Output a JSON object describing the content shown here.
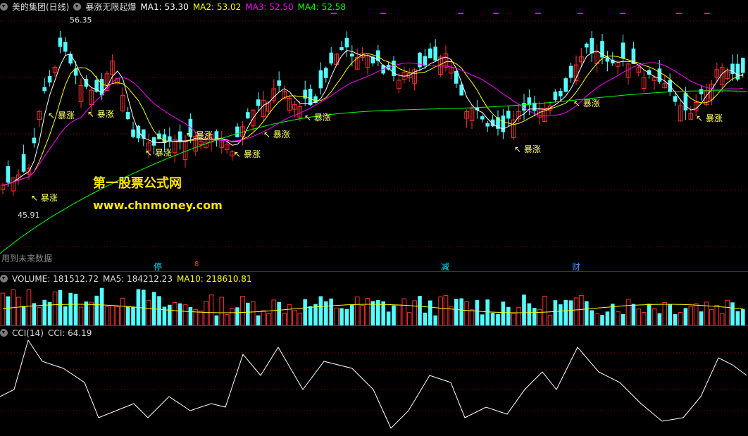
{
  "main": {
    "stock_name": "美的集团(日线)",
    "indicator_name": "暴涨无限起爆",
    "ma": [
      {
        "label": "MA1: 53.30",
        "color": "#ffffff"
      },
      {
        "label": "MA2: 53.02",
        "color": "#ffff00"
      },
      {
        "label": "MA3: 52.50",
        "color": "#ff00ff"
      },
      {
        "label": "MA4: 52.58",
        "color": "#00ff00"
      }
    ],
    "high_label": "56.35",
    "low_label": "45.91",
    "signal_text": "暴涨",
    "watermark_cn": "第一股票公式网",
    "watermark_url": "www.chnmoney.com",
    "future_data_note": "用到未来数据",
    "event_tags": [
      {
        "text": "停",
        "color": "#00e5ff"
      },
      {
        "text": "8",
        "color": "#ff3030"
      },
      {
        "text": "减",
        "color": "#00e5ff"
      },
      {
        "text": "财",
        "color": "#4f8dff"
      }
    ]
  },
  "volume": {
    "label": "VOLUME: 181512.72",
    "ma5": "MA5: 184212.23",
    "ma10": "MA10: 218610.81"
  },
  "cci": {
    "name": "CCI(14)",
    "value": "CCI: 64.19"
  },
  "colors": {
    "up": "#ff3030",
    "down": "#54ffff",
    "grid": "#8b0000",
    "white": "#ffffff",
    "yellow": "#ffff00",
    "magenta": "#ff00ff",
    "green": "#00ff00"
  }
}
